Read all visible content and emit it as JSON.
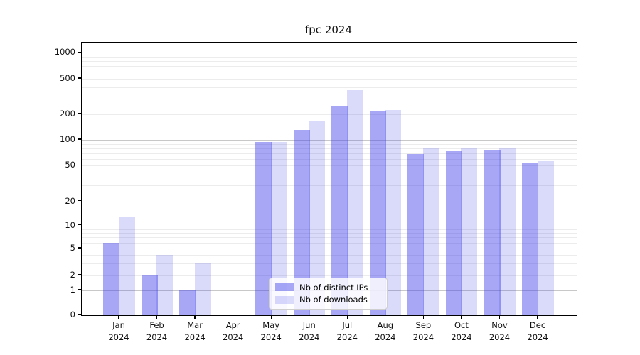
{
  "title": "fpc 2024",
  "colors": {
    "bar_ips": "rgba(60,60,235,0.45)",
    "bar_downloads": "rgba(60,60,235,0.19)",
    "grid_major": "#c8c8c8",
    "grid_minor": "#ececec",
    "axis": "#000000"
  },
  "legend": {
    "items": [
      {
        "label": "Nb of distinct IPs",
        "series_key": "ips"
      },
      {
        "label": "Nb of downloads",
        "series_key": "downloads"
      }
    ]
  },
  "chart_data": {
    "type": "bar",
    "title": "fpc 2024",
    "categories": [
      "Jan",
      "Feb",
      "Mar",
      "Apr",
      "May",
      "Jun",
      "Jul",
      "Aug",
      "Sep",
      "Oct",
      "Nov",
      "Dec"
    ],
    "category_year_label": "2024",
    "series": [
      {
        "name": "Nb of distinct IPs",
        "values": [
          6,
          2,
          1,
          0,
          95,
          130,
          250,
          215,
          68,
          74,
          77,
          54
        ]
      },
      {
        "name": "Nb of downloads",
        "values": [
          13,
          4,
          3,
          0,
          95,
          165,
          375,
          225,
          80,
          79,
          81,
          56
        ]
      }
    ],
    "xlabel": "",
    "ylabel": "",
    "yscale": "log-like with 0 baseline",
    "yticks": [
      0,
      1,
      2,
      5,
      10,
      20,
      50,
      100,
      200,
      500,
      1000
    ],
    "ylim": [
      0,
      1200
    ],
    "grid": true,
    "legend_position": "lower center"
  }
}
